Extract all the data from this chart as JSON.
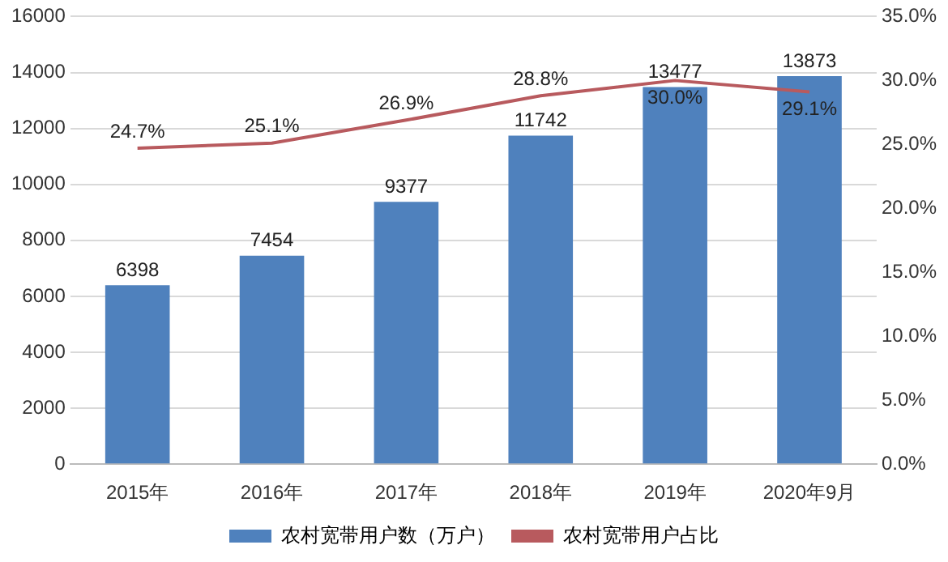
{
  "chart_data": {
    "type": "bar",
    "categories": [
      "2015年",
      "2016年",
      "2017年",
      "2018年",
      "2019年",
      "2020年9月"
    ],
    "series": [
      {
        "name": "农村宽带用户数（万户）",
        "color": "#4f81bd",
        "values": [
          6398,
          7454,
          9377,
          11742,
          13477,
          13873
        ],
        "value_labels": [
          "6398",
          "7454",
          "9377",
          "11742",
          "13477",
          "13873"
        ]
      },
      {
        "name": "农村宽带用户占比",
        "type": "line",
        "axis": "y2",
        "color": "#b85a5e",
        "values": [
          24.7,
          25.1,
          26.9,
          28.8,
          30.0,
          29.1
        ],
        "value_labels": [
          "24.7%",
          "25.1%",
          "26.9%",
          "28.8%",
          "30.0%",
          "29.1%"
        ]
      }
    ],
    "ylim": [
      0,
      16000
    ],
    "yticks": [
      0,
      2000,
      4000,
      6000,
      8000,
      10000,
      12000,
      14000,
      16000
    ],
    "y2lim": [
      0,
      35
    ],
    "y2ticks": [
      {
        "value": 0,
        "label": "0.0%"
      },
      {
        "value": 5,
        "label": "5.0%"
      },
      {
        "value": 10,
        "label": "10.0%"
      },
      {
        "value": 15,
        "label": "15.0%"
      },
      {
        "value": 20,
        "label": "20.0%"
      },
      {
        "value": 25,
        "label": "25.0%"
      },
      {
        "value": 30,
        "label": "30.0%"
      },
      {
        "value": 35,
        "label": "35.0%"
      }
    ],
    "grid": "y",
    "legend": "bottom",
    "marker": "none",
    "line_style": "solid"
  }
}
